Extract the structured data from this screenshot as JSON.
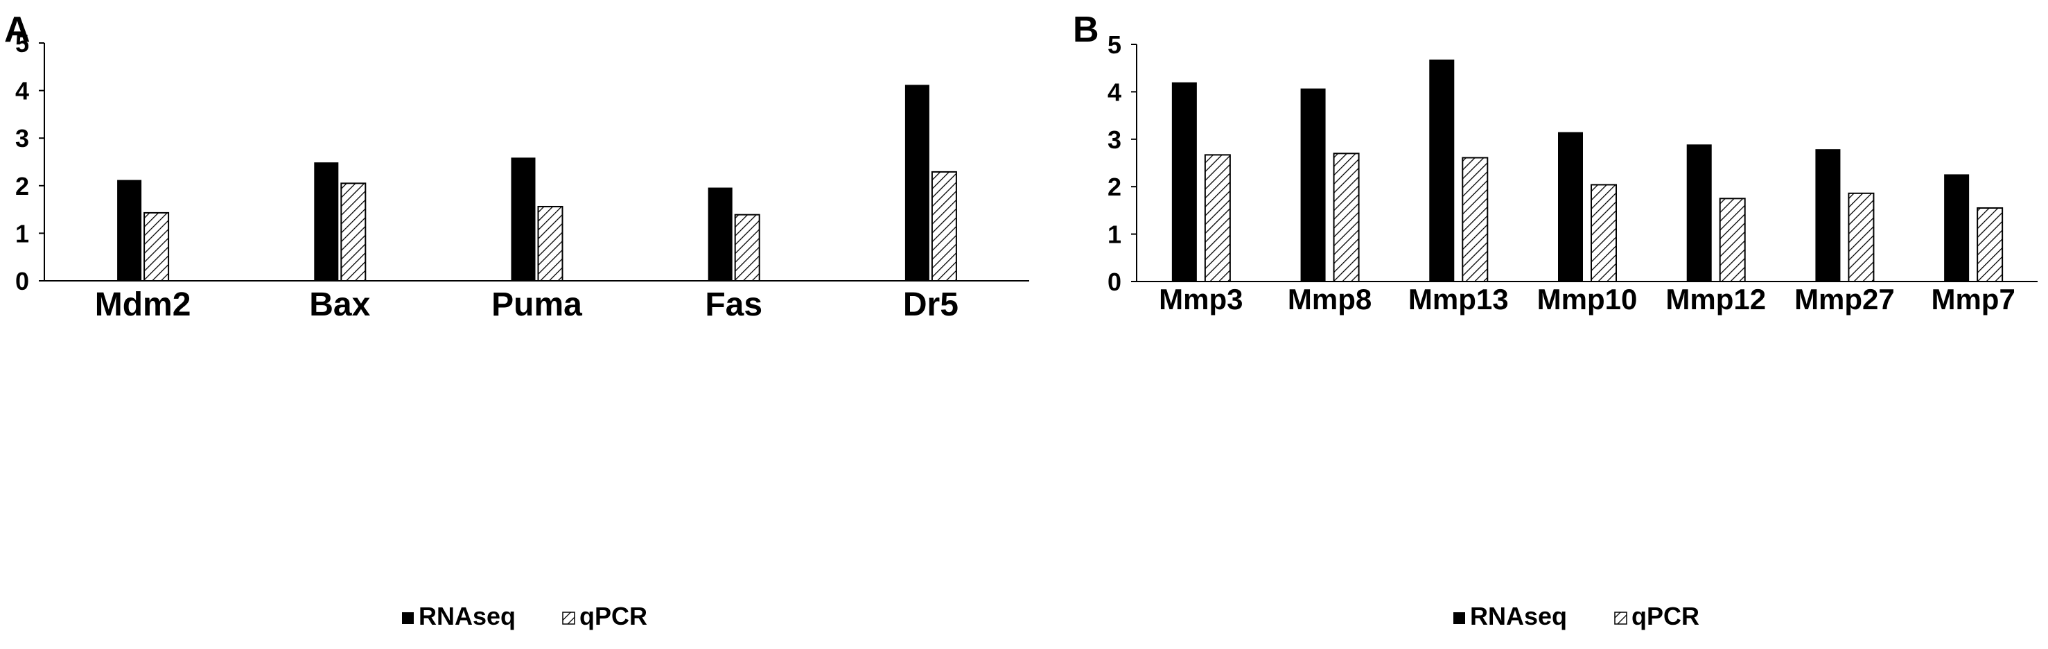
{
  "chart_data": [
    {
      "type": "bar",
      "panel_label": "A",
      "categories": [
        "Mdm2",
        "Bax",
        "Puma",
        "Fas",
        "Dr5"
      ],
      "series": [
        {
          "name": "RNAseq",
          "values": [
            2.12,
            2.49,
            2.59,
            1.96,
            4.12
          ],
          "color": "#000000",
          "pattern": "solid"
        },
        {
          "name": "qPCR",
          "values": [
            1.43,
            2.05,
            1.56,
            1.39,
            2.29
          ],
          "color": "#ffffff",
          "pattern": "diagonal-hatch"
        }
      ],
      "yticks": [
        "0",
        "1",
        "2",
        "3",
        "4",
        "5"
      ],
      "ylim": [
        0,
        5
      ],
      "grid": false,
      "legend": "bottom-center"
    },
    {
      "type": "bar",
      "panel_label": "B",
      "categories": [
        "Mmp3",
        "Mmp8",
        "Mmp13",
        "Mmp10",
        "Mmp12",
        "Mmp27",
        "Mmp7"
      ],
      "series": [
        {
          "name": "RNAseq",
          "values": [
            4.2,
            4.07,
            4.68,
            3.15,
            2.89,
            2.79,
            2.26
          ],
          "color": "#000000",
          "pattern": "solid"
        },
        {
          "name": "qPCR",
          "values": [
            2.67,
            2.7,
            2.61,
            2.04,
            1.75,
            1.86,
            1.55
          ],
          "color": "#ffffff",
          "pattern": "diagonal-hatch"
        }
      ],
      "yticks": [
        "0",
        "1",
        "2",
        "3",
        "4",
        "5"
      ],
      "ylim": [
        0,
        5
      ],
      "grid": false,
      "legend": "bottom-center"
    }
  ]
}
